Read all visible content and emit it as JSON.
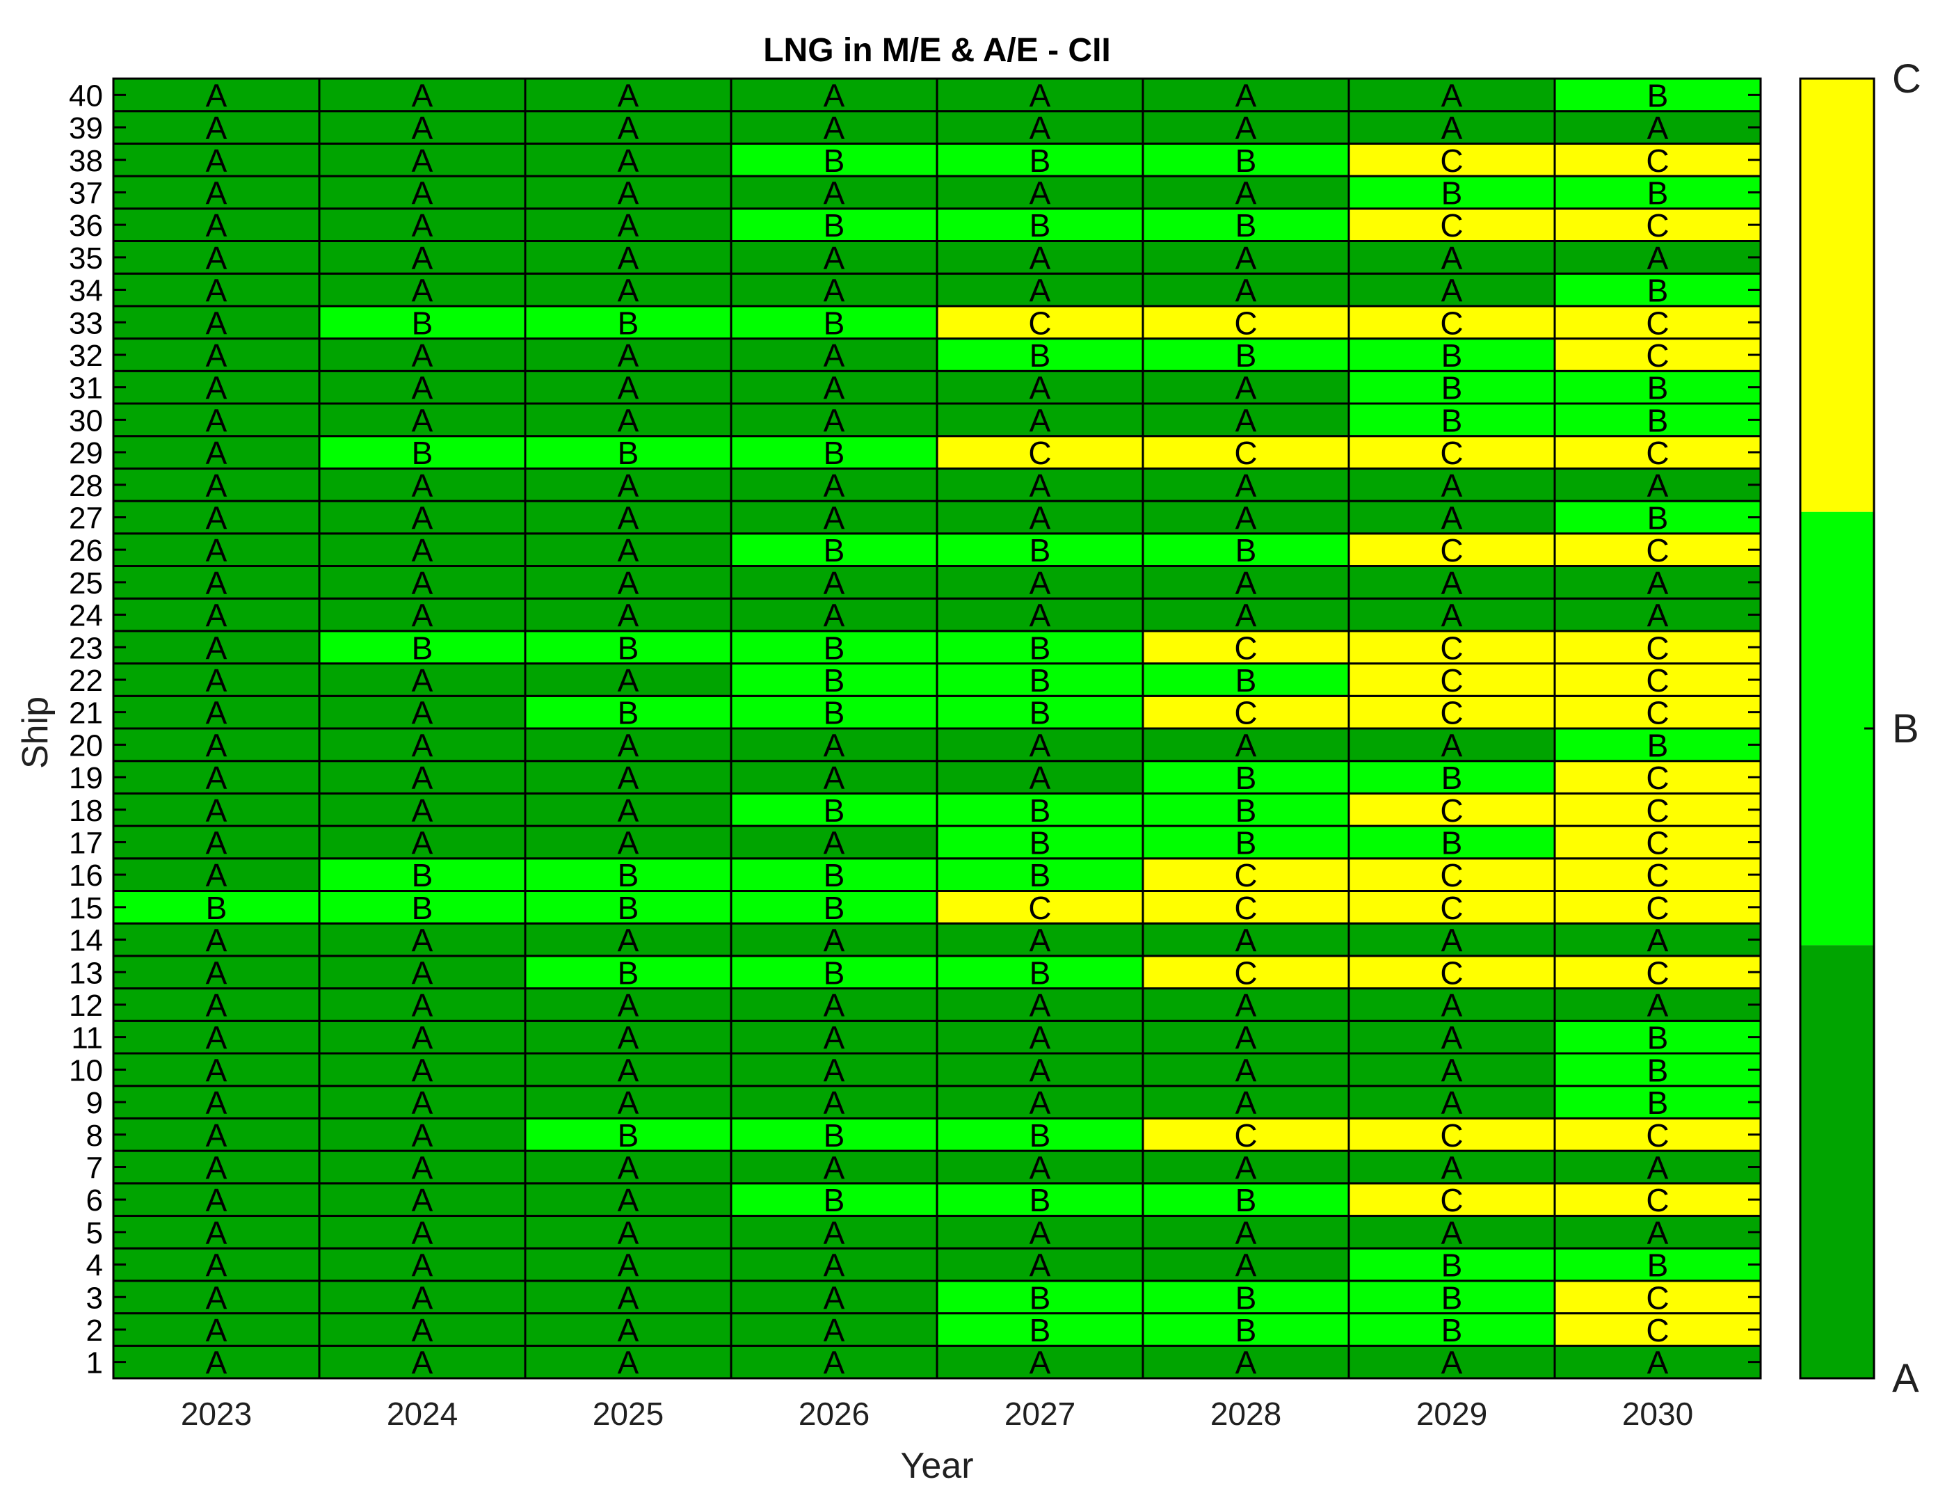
{
  "chart_data": {
    "type": "heatmap",
    "title": "LNG in M/E & A/E - CII",
    "xlabel": "Year",
    "ylabel": "Ship",
    "x": [
      "2023",
      "2024",
      "2025",
      "2026",
      "2027",
      "2028",
      "2029",
      "2030"
    ],
    "y": [
      1,
      2,
      3,
      4,
      5,
      6,
      7,
      8,
      9,
      10,
      11,
      12,
      13,
      14,
      15,
      16,
      17,
      18,
      19,
      20,
      21,
      22,
      23,
      24,
      25,
      26,
      27,
      28,
      29,
      30,
      31,
      32,
      33,
      34,
      35,
      36,
      37,
      38,
      39,
      40
    ],
    "ratings_by_ship": [
      [
        "A",
        "A",
        "A",
        "A",
        "A",
        "A",
        "A",
        "A"
      ],
      [
        "A",
        "A",
        "A",
        "A",
        "B",
        "B",
        "B",
        "C"
      ],
      [
        "A",
        "A",
        "A",
        "A",
        "B",
        "B",
        "B",
        "C"
      ],
      [
        "A",
        "A",
        "A",
        "A",
        "A",
        "A",
        "B",
        "B"
      ],
      [
        "A",
        "A",
        "A",
        "A",
        "A",
        "A",
        "A",
        "A"
      ],
      [
        "A",
        "A",
        "A",
        "B",
        "B",
        "B",
        "C",
        "C"
      ],
      [
        "A",
        "A",
        "A",
        "A",
        "A",
        "A",
        "A",
        "A"
      ],
      [
        "A",
        "A",
        "B",
        "B",
        "B",
        "C",
        "C",
        "C"
      ],
      [
        "A",
        "A",
        "A",
        "A",
        "A",
        "A",
        "A",
        "B"
      ],
      [
        "A",
        "A",
        "A",
        "A",
        "A",
        "A",
        "A",
        "B"
      ],
      [
        "A",
        "A",
        "A",
        "A",
        "A",
        "A",
        "A",
        "B"
      ],
      [
        "A",
        "A",
        "A",
        "A",
        "A",
        "A",
        "A",
        "A"
      ],
      [
        "A",
        "A",
        "B",
        "B",
        "B",
        "C",
        "C",
        "C"
      ],
      [
        "A",
        "A",
        "A",
        "A",
        "A",
        "A",
        "A",
        "A"
      ],
      [
        "B",
        "B",
        "B",
        "B",
        "C",
        "C",
        "C",
        "C"
      ],
      [
        "A",
        "B",
        "B",
        "B",
        "B",
        "C",
        "C",
        "C"
      ],
      [
        "A",
        "A",
        "A",
        "A",
        "B",
        "B",
        "B",
        "C"
      ],
      [
        "A",
        "A",
        "A",
        "B",
        "B",
        "B",
        "C",
        "C"
      ],
      [
        "A",
        "A",
        "A",
        "A",
        "A",
        "B",
        "B",
        "C"
      ],
      [
        "A",
        "A",
        "A",
        "A",
        "A",
        "A",
        "A",
        "B"
      ],
      [
        "A",
        "A",
        "B",
        "B",
        "B",
        "C",
        "C",
        "C"
      ],
      [
        "A",
        "A",
        "A",
        "B",
        "B",
        "B",
        "C",
        "C"
      ],
      [
        "A",
        "B",
        "B",
        "B",
        "B",
        "C",
        "C",
        "C"
      ],
      [
        "A",
        "A",
        "A",
        "A",
        "A",
        "A",
        "A",
        "A"
      ],
      [
        "A",
        "A",
        "A",
        "A",
        "A",
        "A",
        "A",
        "A"
      ],
      [
        "A",
        "A",
        "A",
        "B",
        "B",
        "B",
        "C",
        "C"
      ],
      [
        "A",
        "A",
        "A",
        "A",
        "A",
        "A",
        "A",
        "B"
      ],
      [
        "A",
        "A",
        "A",
        "A",
        "A",
        "A",
        "A",
        "A"
      ],
      [
        "A",
        "B",
        "B",
        "B",
        "C",
        "C",
        "C",
        "C"
      ],
      [
        "A",
        "A",
        "A",
        "A",
        "A",
        "A",
        "B",
        "B"
      ],
      [
        "A",
        "A",
        "A",
        "A",
        "A",
        "A",
        "B",
        "B"
      ],
      [
        "A",
        "A",
        "A",
        "A",
        "B",
        "B",
        "B",
        "C"
      ],
      [
        "A",
        "B",
        "B",
        "B",
        "C",
        "C",
        "C",
        "C"
      ],
      [
        "A",
        "A",
        "A",
        "A",
        "A",
        "A",
        "A",
        "B"
      ],
      [
        "A",
        "A",
        "A",
        "A",
        "A",
        "A",
        "A",
        "A"
      ],
      [
        "A",
        "A",
        "A",
        "B",
        "B",
        "B",
        "C",
        "C"
      ],
      [
        "A",
        "A",
        "A",
        "A",
        "A",
        "A",
        "B",
        "B"
      ],
      [
        "A",
        "A",
        "A",
        "B",
        "B",
        "B",
        "C",
        "C"
      ],
      [
        "A",
        "A",
        "A",
        "A",
        "A",
        "A",
        "A",
        "A"
      ],
      [
        "A",
        "A",
        "A",
        "A",
        "A",
        "A",
        "A",
        "B"
      ]
    ],
    "colorbar": {
      "labels": [
        "A",
        "B",
        "C"
      ],
      "colors": {
        "A": "#00a400",
        "B": "#00ff00",
        "C": "#ffff00"
      }
    },
    "grid": true,
    "legend": "colorbar right"
  }
}
